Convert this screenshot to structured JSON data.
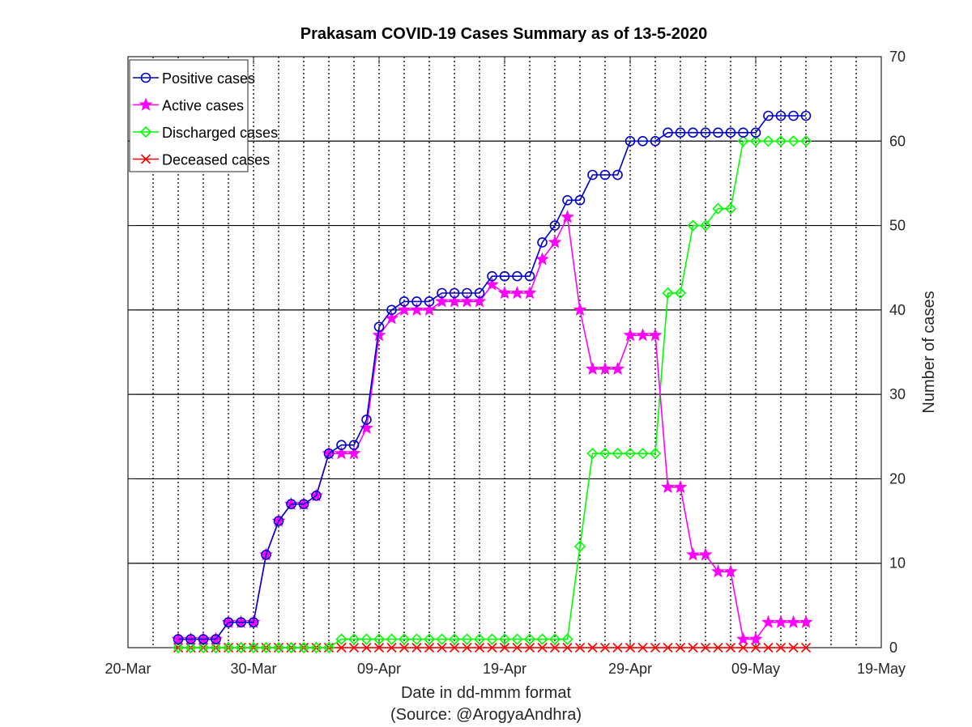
{
  "chart_data": {
    "type": "line",
    "title": "Prakasam COVID-19 Cases Summary as of 13-5-2020",
    "xlabel": "Date in dd-mmm format",
    "xlabel2": "(Source: @ArogyaAndhra)",
    "ylabel": "Number of cases",
    "xlim": [
      "2020-03-20",
      "2020-05-19"
    ],
    "ylim": [
      0,
      70
    ],
    "x_ticks": [
      "20-Mar",
      "30-Mar",
      "09-Apr",
      "19-Apr",
      "29-Apr",
      "09-May",
      "19-May"
    ],
    "y_ticks": [
      0,
      10,
      20,
      30,
      40,
      50,
      60,
      70
    ],
    "y_axis_side": "right",
    "grid": true,
    "legend_position": "top-left",
    "x": [
      "2020-03-24",
      "2020-03-25",
      "2020-03-26",
      "2020-03-27",
      "2020-03-28",
      "2020-03-29",
      "2020-03-30",
      "2020-03-31",
      "2020-04-01",
      "2020-04-02",
      "2020-04-03",
      "2020-04-04",
      "2020-04-05",
      "2020-04-06",
      "2020-04-07",
      "2020-04-08",
      "2020-04-09",
      "2020-04-10",
      "2020-04-11",
      "2020-04-12",
      "2020-04-13",
      "2020-04-14",
      "2020-04-15",
      "2020-04-16",
      "2020-04-17",
      "2020-04-18",
      "2020-04-19",
      "2020-04-20",
      "2020-04-21",
      "2020-04-22",
      "2020-04-23",
      "2020-04-24",
      "2020-04-25",
      "2020-04-26",
      "2020-04-27",
      "2020-04-28",
      "2020-04-29",
      "2020-04-30",
      "2020-05-01",
      "2020-05-02",
      "2020-05-03",
      "2020-05-04",
      "2020-05-05",
      "2020-05-06",
      "2020-05-07",
      "2020-05-08",
      "2020-05-09",
      "2020-05-10",
      "2020-05-11",
      "2020-05-12",
      "2020-05-13"
    ],
    "series": [
      {
        "name": "Positive cases",
        "color": "#0000cc",
        "marker": "circle",
        "values": [
          1,
          1,
          1,
          1,
          3,
          3,
          3,
          11,
          15,
          17,
          17,
          18,
          23,
          24,
          24,
          27,
          38,
          40,
          41,
          41,
          41,
          42,
          42,
          42,
          42,
          44,
          44,
          44,
          44,
          48,
          50,
          53,
          53,
          56,
          56,
          56,
          60,
          60,
          60,
          61,
          61,
          61,
          61,
          61,
          61,
          61,
          61,
          63,
          63,
          63,
          63
        ]
      },
      {
        "name": "Active cases",
        "color": "#ff00ff",
        "marker": "star",
        "values": [
          1,
          1,
          1,
          1,
          3,
          3,
          3,
          11,
          15,
          17,
          17,
          18,
          23,
          23,
          23,
          26,
          37,
          39,
          40,
          40,
          40,
          41,
          41,
          41,
          41,
          43,
          42,
          42,
          42,
          46,
          48,
          51,
          40,
          33,
          33,
          33,
          37,
          37,
          37,
          19,
          19,
          11,
          11,
          9,
          9,
          1,
          1,
          3,
          3,
          3,
          3
        ]
      },
      {
        "name": "Discharged cases",
        "color": "#00ff00",
        "marker": "diamond",
        "values": [
          0,
          0,
          0,
          0,
          0,
          0,
          0,
          0,
          0,
          0,
          0,
          0,
          0,
          1,
          1,
          1,
          1,
          1,
          1,
          1,
          1,
          1,
          1,
          1,
          1,
          1,
          1,
          1,
          1,
          1,
          1,
          1,
          12,
          23,
          23,
          23,
          23,
          23,
          23,
          42,
          42,
          50,
          50,
          52,
          52,
          60,
          60,
          60,
          60,
          60,
          60
        ]
      },
      {
        "name": "Deceased cases",
        "color": "#ff0000",
        "marker": "x",
        "values": [
          0,
          0,
          0,
          0,
          0,
          0,
          0,
          0,
          0,
          0,
          0,
          0,
          0,
          0,
          0,
          0,
          0,
          0,
          0,
          0,
          0,
          0,
          0,
          0,
          0,
          0,
          0,
          0,
          0,
          0,
          0,
          0,
          0,
          0,
          0,
          0,
          0,
          0,
          0,
          0,
          0,
          0,
          0,
          0,
          0,
          0,
          0,
          0,
          0,
          0,
          0
        ]
      }
    ]
  }
}
